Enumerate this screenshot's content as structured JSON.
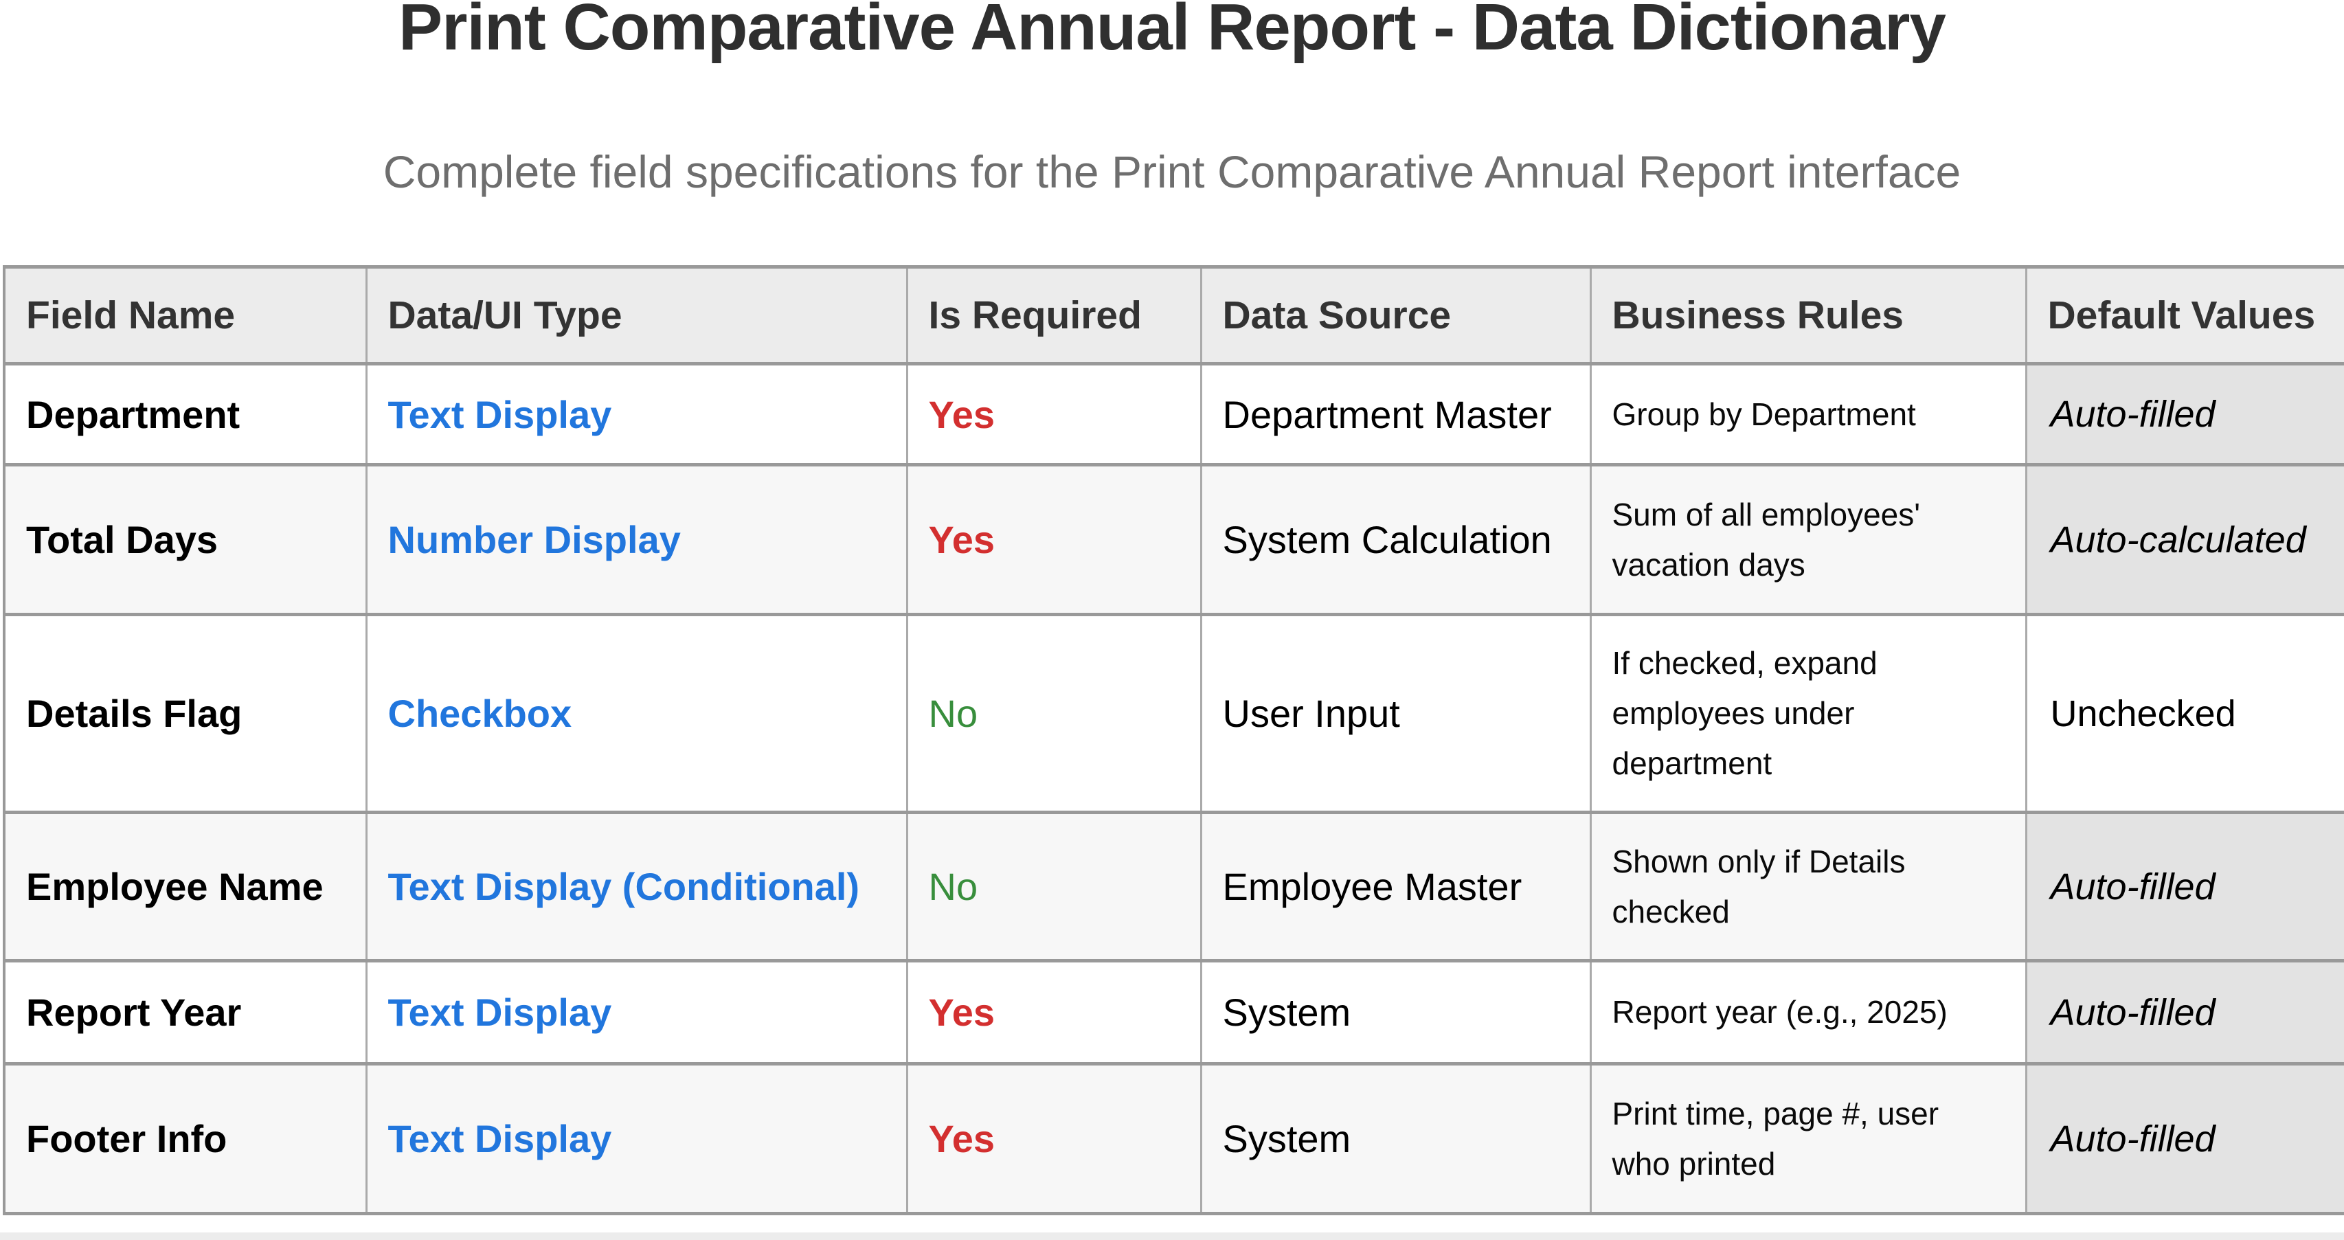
{
  "page": {
    "title": "Print Comparative Annual Report - Data Dictionary",
    "subtitle": "Complete field specifications for the Print Comparative Annual Report interface"
  },
  "colors": {
    "type_link_blue": "#2176dd",
    "required_yes_red": "#d32f2f",
    "required_no_green": "#388e3c",
    "header_bg": "#ececec",
    "alt_row_bg": "#f7f7f7",
    "auto_default_cell_bg": "#e3e3e3",
    "border_gray": "#999999",
    "title_text": "#2f2f2f",
    "subtitle_text": "#6e6e6e"
  },
  "table": {
    "headers": [
      "Field Name",
      "Data/UI Type",
      "Is Required",
      "Data Source",
      "Business Rules",
      "Default Values"
    ],
    "rows": [
      {
        "field_name": "Department",
        "ui_type": "Text Display",
        "is_required": "Yes",
        "data_source": "Department Master",
        "business_rules": "Group by Department",
        "default_value": "Auto-filled"
      },
      {
        "field_name": "Total Days",
        "ui_type": "Number Display",
        "is_required": "Yes",
        "data_source": "System Calculation",
        "business_rules": "Sum of all employees' vacation days",
        "default_value": "Auto-calculated"
      },
      {
        "field_name": "Details Flag",
        "ui_type": "Checkbox",
        "is_required": "No",
        "data_source": "User Input",
        "business_rules": "If checked, expand employees under department",
        "default_value": "Unchecked"
      },
      {
        "field_name": "Employee Name",
        "ui_type": "Text Display (Conditional)",
        "is_required": "No",
        "data_source": "Employee Master",
        "business_rules": "Shown only if Details checked",
        "default_value": "Auto-filled"
      },
      {
        "field_name": "Report Year",
        "ui_type": "Text Display",
        "is_required": "Yes",
        "data_source": "System",
        "business_rules": "Report year (e.g., 2025)",
        "default_value": "Auto-filled"
      },
      {
        "field_name": "Footer Info",
        "ui_type": "Text Display",
        "is_required": "Yes",
        "data_source": "System",
        "business_rules": "Print time, page #, user who printed",
        "default_value": "Auto-filled"
      }
    ]
  }
}
